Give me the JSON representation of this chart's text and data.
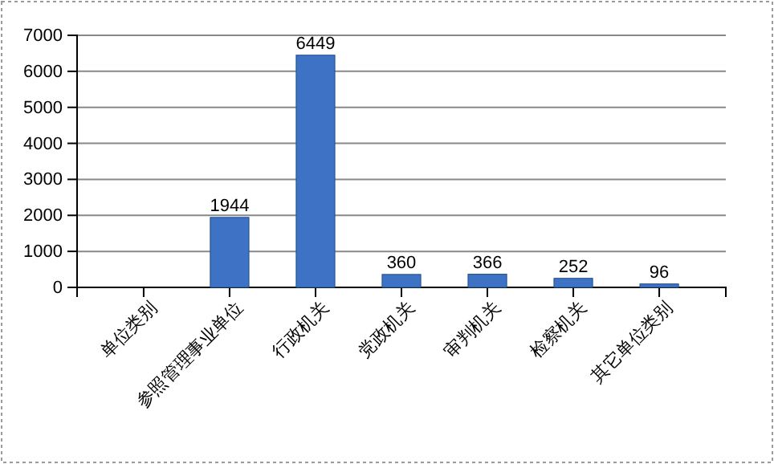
{
  "chart_data": {
    "type": "bar",
    "categories": [
      "单位类别",
      "参照管理事业单位",
      "行政机关",
      "党政机关",
      "审判机关",
      "检察机关",
      "其它单位类别"
    ],
    "values": [
      null,
      1944,
      6449,
      360,
      366,
      252,
      96
    ],
    "color": "#3d72c4",
    "ylim": [
      0,
      7000
    ],
    "yticks": [
      0,
      1000,
      2000,
      3000,
      4000,
      5000,
      6000,
      7000
    ],
    "grid": "y",
    "data_labels": true
  }
}
